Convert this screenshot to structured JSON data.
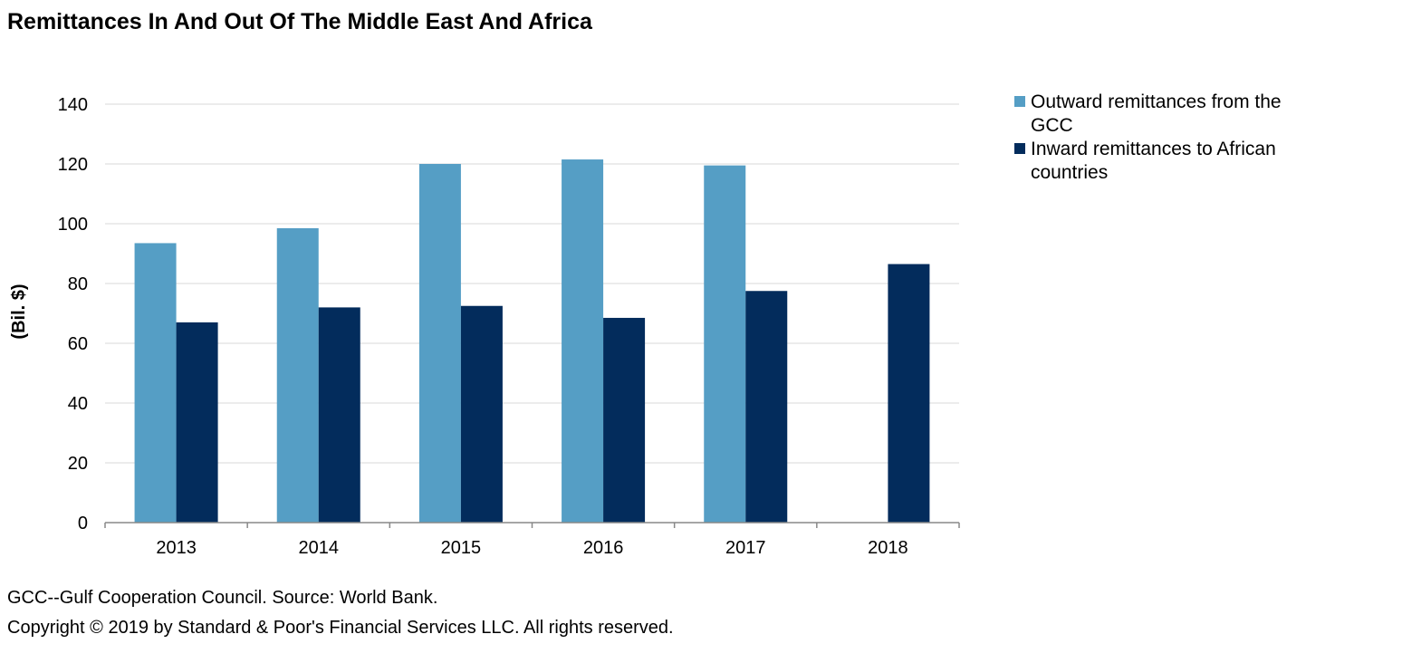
{
  "chart_data": {
    "type": "bar",
    "title": "Remittances In And Out Of The Middle East And Africa",
    "xlabel": "",
    "ylabel": "(Bil. $)",
    "categories": [
      "2013",
      "2014",
      "2015",
      "2016",
      "2017",
      "2018"
    ],
    "ylim": [
      0,
      140
    ],
    "yticks": [
      0,
      20,
      40,
      60,
      80,
      100,
      120,
      140
    ],
    "grid": true,
    "legend_position": "right",
    "series": [
      {
        "name": "Outward remittances from the GCC",
        "color": "#559ec5",
        "values": [
          93.5,
          98.5,
          120,
          121.5,
          119.5,
          null
        ]
      },
      {
        "name": "Inward remittances to African countries",
        "color": "#032c5c",
        "values": [
          67,
          72,
          72.5,
          68.5,
          77.5,
          86.5
        ]
      }
    ]
  },
  "footnotes": {
    "source": "GCC--Gulf Cooperation Council. Source: World Bank.",
    "copyright": "Copyright © 2019 by Standard & Poor's Financial Services LLC. All rights reserved."
  }
}
